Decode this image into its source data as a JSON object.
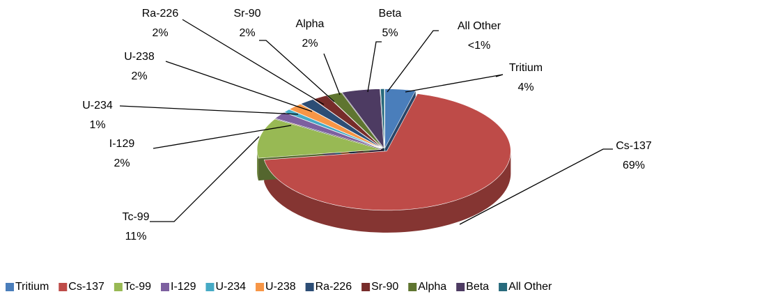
{
  "chart_data": {
    "type": "pie",
    "three_d": true,
    "categories": [
      "Tritium",
      "Cs-137",
      "Tc-99",
      "I-129",
      "U-234",
      "U-238",
      "Ra-226",
      "Sr-90",
      "Alpha",
      "Beta",
      "All Other"
    ],
    "values": [
      4,
      69,
      11,
      2,
      1,
      2,
      2,
      2,
      2,
      5,
      0.5
    ],
    "value_labels": [
      "4%",
      "69%",
      "11%",
      "2%",
      "1%",
      "2%",
      "2%",
      "2%",
      "2%",
      "5%",
      "<1%"
    ],
    "colors": [
      "#4a7ebb",
      "#be4b48",
      "#98b954",
      "#7d60a0",
      "#46aac5",
      "#f79646",
      "#2c4d75",
      "#772c2a",
      "#5f7530",
      "#4d3b62",
      "#276a7c"
    ],
    "legend": "bottom"
  }
}
